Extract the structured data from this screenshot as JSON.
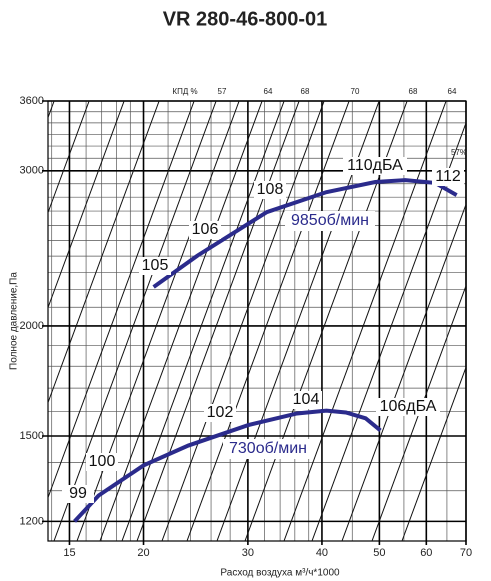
{
  "chart_data": {
    "type": "line",
    "title": "VR 280-46-800-01",
    "x_label": "Расход воздуха  м³/ч*1000",
    "y_label": "Полное давление,Па",
    "log_x": true,
    "log_y": true,
    "grid": true,
    "xlim": [
      13.8,
      70
    ],
    "ylim": [
      1140,
      3600
    ],
    "xticks": [
      15,
      20,
      30,
      40,
      50,
      60,
      70
    ],
    "yticks": [
      1200,
      1500,
      2000,
      3000,
      3600
    ],
    "x_minor_ticks": [
      14,
      16,
      17,
      18,
      19,
      22,
      24,
      26,
      28,
      32,
      34,
      36,
      38,
      45,
      55,
      65
    ],
    "y_minor_ticks": [
      1300,
      1400,
      1600,
      1700,
      1800,
      1900,
      2100,
      2200,
      2300,
      2400,
      2500,
      2600,
      2700,
      2800,
      2900,
      3100,
      3200,
      3300,
      3400,
      3500
    ],
    "efficiency_title": "КПД %",
    "efficiency_labels": [
      "57",
      "64",
      "68",
      "70",
      "68",
      "64",
      "57%"
    ],
    "noise_labels": [
      "105",
      "106",
      "108",
      "110дБА",
      "112",
      "99",
      "100",
      "102",
      "104",
      "106дБА"
    ],
    "series": [
      {
        "name": "985об/мин",
        "color": "#2b2b8c",
        "x": [
          20.8,
          24.7,
          32.3,
          40.7,
          49.2,
          55.3,
          62.1,
          67.5
        ],
        "values": [
          2214,
          2405,
          2693,
          2837,
          2913,
          2927,
          2906,
          2815
        ]
      },
      {
        "name": "730об/мин",
        "color": "#2b2b8c",
        "x": [
          15.3,
          16.8,
          20,
          23.8,
          30,
          36.3,
          40.7,
          43.9,
          47.4,
          50.2
        ],
        "values": [
          1200,
          1284,
          1389,
          1463,
          1543,
          1591,
          1603,
          1595,
          1571,
          1522
        ]
      }
    ]
  }
}
